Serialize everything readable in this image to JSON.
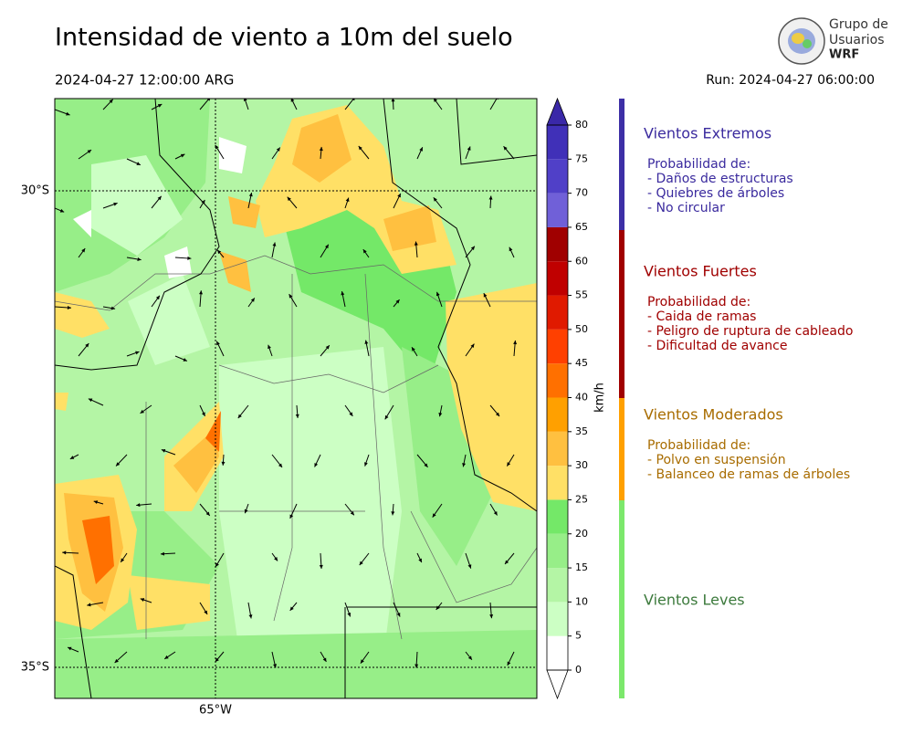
{
  "header": {
    "title": "Intensidad de viento a 10m del suelo",
    "valid_time": "2024-04-27 12:00:00 ARG",
    "run": "Run: 2024-04-27 06:00:00"
  },
  "logo": {
    "lines": [
      "Grupo de",
      "Usuarios",
      "WRF"
    ]
  },
  "map": {
    "lat_labels": [
      "30°S",
      "35°S"
    ],
    "lon_labels": [
      "65°W"
    ]
  },
  "chart_data": {
    "type": "colorbar",
    "label": "km/h",
    "ylim": [
      0,
      80
    ],
    "yticks": [
      0,
      5,
      10,
      15,
      20,
      25,
      30,
      35,
      40,
      45,
      50,
      55,
      60,
      65,
      70,
      75,
      80
    ],
    "colors": [
      "#ffffff",
      "#ccffc4",
      "#b4f5a5",
      "#97ee88",
      "#74e868",
      "#ffe066",
      "#ffc040",
      "#ffa000",
      "#ff7000",
      "#ff4000",
      "#e01a00",
      "#c00000",
      "#a00000",
      "#7060d8",
      "#5040c8",
      "#4030b8"
    ],
    "under_color": "#ffffff",
    "over_color": "#3a28a8"
  },
  "legend": {
    "groups": [
      {
        "title": "Vientos Extremos",
        "color": "#3d2fa6",
        "text_color": "#3a2a9e",
        "subtitle": "Probabilidad de:",
        "items": [
          "- Daños de estructuras",
          "- Quiebres de árboles",
          "- No circular"
        ]
      },
      {
        "title": "Vientos Fuertes",
        "color": "#a00000",
        "text_color": "#a00000",
        "subtitle": "Probabilidad de:",
        "items": [
          "- Caida de ramas",
          "- Peligro de ruptura de cableado",
          "- Dificultad de avance"
        ]
      },
      {
        "title": "Vientos Moderados",
        "color": "#ffa000",
        "text_color": "#a86c00",
        "subtitle": "Probabilidad de:",
        "items": [
          "- Polvo en suspensión",
          "- Balanceo de ramas de árboles"
        ]
      },
      {
        "title": "Vientos Leves",
        "color": "#7ce86c",
        "text_color": "#3c7a3c"
      }
    ]
  }
}
